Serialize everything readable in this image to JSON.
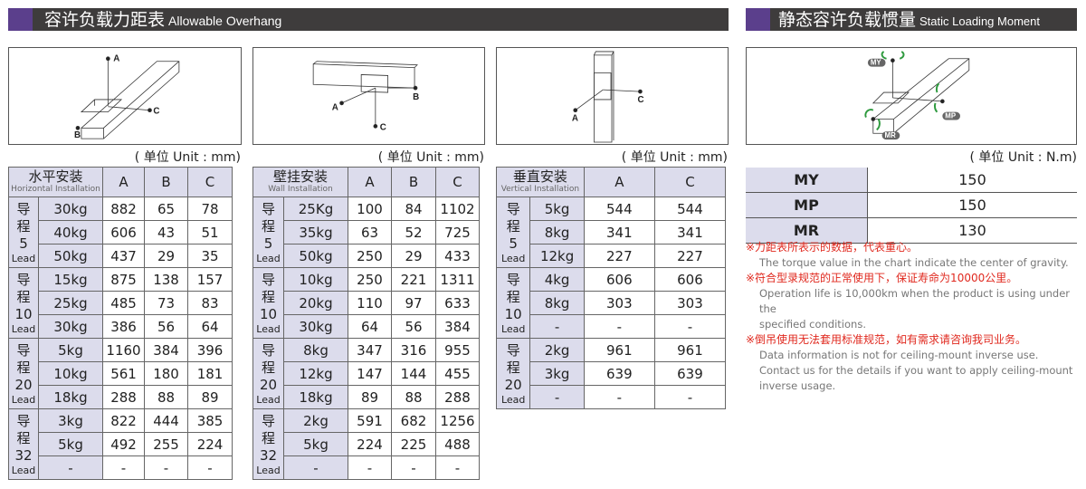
{
  "overhang_title_cn": "容许负载力距表",
  "overhang_title_en": "Allowable Overhang",
  "moment_title_cn": "静态容许负载惯量",
  "moment_title_en": "Static Loading Moment",
  "colors": {
    "header_bar": "#3e3c3c",
    "accent": "#5b3f8c",
    "table_header": "#dcdcec",
    "note_red": "#e0281e",
    "arrow_green": "#2e9a3e"
  },
  "diagrams": {
    "horizontal": {
      "labels": [
        "A",
        "B",
        "C"
      ]
    },
    "wall": {
      "labels": [
        "A",
        "B",
        "C"
      ]
    },
    "vertical": {
      "labels": [
        "A",
        "C"
      ]
    },
    "moment": {
      "labels": [
        "MY",
        "MP",
        "MR"
      ]
    }
  },
  "unit_mm": "( 单位 Unit : mm)",
  "unit_nm": "( 单位 Unit : N.m)",
  "tables": [
    {
      "header_cn": "水平安装",
      "header_en": "Horizontal Installation",
      "columns": [
        "A",
        "B",
        "C"
      ],
      "groups": [
        {
          "label": "导程",
          "lead": "5",
          "lead_en": "Lead",
          "rows": [
            {
              "load": "30kg",
              "values": [
                "882",
                "65",
                "78"
              ]
            },
            {
              "load": "40kg",
              "values": [
                "606",
                "43",
                "51"
              ]
            },
            {
              "load": "50kg",
              "values": [
                "437",
                "29",
                "35"
              ]
            }
          ]
        },
        {
          "label": "导程",
          "lead": "10",
          "lead_en": "Lead",
          "rows": [
            {
              "load": "15kg",
              "values": [
                "875",
                "138",
                "157"
              ]
            },
            {
              "load": "25kg",
              "values": [
                "485",
                "73",
                "83"
              ]
            },
            {
              "load": "30kg",
              "values": [
                "386",
                "56",
                "64"
              ]
            }
          ]
        },
        {
          "label": "导程",
          "lead": "20",
          "lead_en": "Lead",
          "rows": [
            {
              "load": "5kg",
              "values": [
                "1160",
                "384",
                "396"
              ]
            },
            {
              "load": "10kg",
              "values": [
                "561",
                "180",
                "181"
              ]
            },
            {
              "load": "18kg",
              "values": [
                "288",
                "88",
                "89"
              ]
            }
          ]
        },
        {
          "label": "导程",
          "lead": "32",
          "lead_en": "Lead",
          "rows": [
            {
              "load": "3kg",
              "values": [
                "822",
                "444",
                "385"
              ]
            },
            {
              "load": "5kg",
              "values": [
                "492",
                "255",
                "224"
              ]
            },
            {
              "load": "-",
              "values": [
                "-",
                "-",
                "-"
              ]
            }
          ]
        }
      ]
    },
    {
      "header_cn": "壁挂安装",
      "header_en": "Wall Installation",
      "columns": [
        "A",
        "B",
        "C"
      ],
      "groups": [
        {
          "label": "导程",
          "lead": "5",
          "lead_en": "Lead",
          "rows": [
            {
              "load": "25Kg",
              "values": [
                "100",
                "84",
                "1102"
              ]
            },
            {
              "load": "35kg",
              "values": [
                "63",
                "52",
                "725"
              ]
            },
            {
              "load": "50kg",
              "values": [
                "250",
                "29",
                "433"
              ]
            }
          ]
        },
        {
          "label": "导程",
          "lead": "10",
          "lead_en": "Lead",
          "rows": [
            {
              "load": "10kg",
              "values": [
                "250",
                "221",
                "1311"
              ]
            },
            {
              "load": "20kg",
              "values": [
                "110",
                "97",
                "633"
              ]
            },
            {
              "load": "30kg",
              "values": [
                "64",
                "56",
                "384"
              ]
            }
          ]
        },
        {
          "label": "导程",
          "lead": "20",
          "lead_en": "Lead",
          "rows": [
            {
              "load": "8kg",
              "values": [
                "347",
                "316",
                "955"
              ]
            },
            {
              "load": "12kg",
              "values": [
                "147",
                "144",
                "455"
              ]
            },
            {
              "load": "18kg",
              "values": [
                "89",
                "88",
                "288"
              ]
            }
          ]
        },
        {
          "label": "导程",
          "lead": "32",
          "lead_en": "Lead",
          "rows": [
            {
              "load": "2kg",
              "values": [
                "591",
                "682",
                "1256"
              ]
            },
            {
              "load": "5kg",
              "values": [
                "224",
                "225",
                "488"
              ]
            },
            {
              "load": "-",
              "values": [
                "-",
                "-",
                "-"
              ]
            }
          ]
        }
      ]
    },
    {
      "header_cn": "垂直安装",
      "header_en": "Vertical Installation",
      "columns": [
        "A",
        "C"
      ],
      "groups": [
        {
          "label": "导程",
          "lead": "5",
          "lead_en": "Lead",
          "rows": [
            {
              "load": "5kg",
              "values": [
                "544",
                "544"
              ]
            },
            {
              "load": "8kg",
              "values": [
                "341",
                "341"
              ]
            },
            {
              "load": "12kg",
              "values": [
                "227",
                "227"
              ]
            }
          ]
        },
        {
          "label": "导程",
          "lead": "10",
          "lead_en": "Lead",
          "rows": [
            {
              "load": "4kg",
              "values": [
                "606",
                "606"
              ]
            },
            {
              "load": "8kg",
              "values": [
                "303",
                "303"
              ]
            },
            {
              "load": "-",
              "values": [
                "-",
                "-"
              ]
            }
          ]
        },
        {
          "label": "导程",
          "lead": "20",
          "lead_en": "Lead",
          "rows": [
            {
              "load": "2kg",
              "values": [
                "961",
                "961"
              ]
            },
            {
              "load": "3kg",
              "values": [
                "639",
                "639"
              ]
            },
            {
              "load": "-",
              "values": [
                "-",
                "-"
              ]
            }
          ]
        }
      ]
    }
  ],
  "moments": [
    {
      "key": "MY",
      "value": "150"
    },
    {
      "key": "MP",
      "value": "150"
    },
    {
      "key": "MR",
      "value": "130"
    }
  ],
  "notes": [
    {
      "cn": "※力距表所表示的数据，代表重心。",
      "en": [
        "The torque value in the chart indicate the center of gravity."
      ]
    },
    {
      "cn": "※符合型录规范的正常使用下，保证寿命为10000公里。",
      "en": [
        "Operation life is 10,000km when the product is using under the",
        "specified conditions."
      ]
    },
    {
      "cn": "※倒吊使用无法套用标准规范，如有需求请咨询我司业务。",
      "en": [
        "Data information is not for ceiling-mount inverse use.",
        "Contact us for the details if you want to apply ceiling-mount",
        "inverse usage."
      ]
    }
  ]
}
